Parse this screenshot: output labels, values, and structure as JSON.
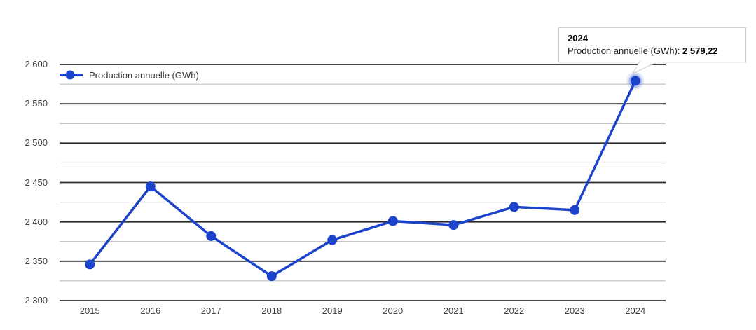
{
  "chart_data": {
    "type": "line",
    "title": "",
    "categories": [
      "2015",
      "2016",
      "2017",
      "2018",
      "2019",
      "2020",
      "2021",
      "2022",
      "2023",
      "2024"
    ],
    "series": [
      {
        "name": "Production annuelle (GWh)",
        "values": [
          2346,
          2445,
          2382,
          2331,
          2377,
          2401,
          2396,
          2419,
          2415,
          2579.22
        ]
      }
    ],
    "xlabel": "",
    "ylabel": "",
    "ylim": [
      2300,
      2600
    ],
    "y_major_ticks": [
      2300,
      2350,
      2400,
      2450,
      2500,
      2550,
      2600
    ],
    "y_tick_labels": [
      "2 300",
      "2 350",
      "2 400",
      "2 450",
      "2 500",
      "2 550",
      "2 600"
    ],
    "y_minor_ticks": [
      2325,
      2375,
      2425,
      2475,
      2525,
      2575
    ],
    "grid": "horizontal only, dark major lines with light minor lines between",
    "legend_position": "top-left inside plot",
    "highlighted_point": {
      "category": "2024",
      "value": 2579.22
    }
  },
  "legend": {
    "label": "Production annuelle (GWh)"
  },
  "tooltip": {
    "title": "2024",
    "series_label": "Production annuelle (GWh): ",
    "value": "2 579,22"
  },
  "colors": {
    "series": "#1b43cc",
    "major_gridline": "#2b2b2b",
    "minor_gridline": "#b3b3b3",
    "axis_label": "#404040",
    "legend_text": "#333333",
    "tooltip_border": "#cccccc",
    "background": "#ffffff"
  }
}
